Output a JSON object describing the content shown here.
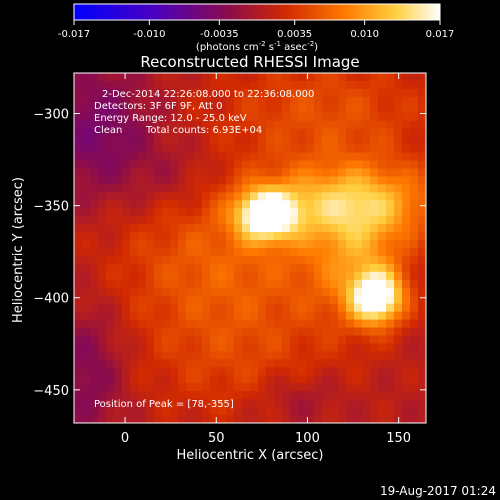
{
  "chart_data": {
    "type": "heatmap",
    "title": "Reconstructed RHESSI Image",
    "xlabel": "Heliocentric X (arcsec)",
    "ylabel": "Heliocentric Y (arcsec)",
    "xlim": [
      -28,
      165
    ],
    "ylim": [
      -468,
      -278
    ],
    "x_ticks": [
      "0",
      "50",
      "100",
      "150"
    ],
    "x_tick_values": [
      0,
      50,
      100,
      150
    ],
    "y_ticks": [
      "-300",
      "-350",
      "-400",
      "-450"
    ],
    "y_tick_values": [
      -300,
      -350,
      -400,
      -450
    ],
    "colorbar": {
      "range": [
        -0.017,
        0.017
      ],
      "ticks": [
        "-0.017",
        "-0.010",
        "-0.0035",
        "0.0035",
        "0.010",
        "0.017"
      ],
      "tick_values": [
        -0.017,
        -0.01,
        -0.0035,
        0.0035,
        0.01,
        0.017
      ],
      "units_prefix": "(photons cm",
      "units_sup1": "-2",
      "units_mid1": " s",
      "units_sup2": "-1",
      "units_mid2": " asec",
      "units_sup3": "-2",
      "units_suffix": ")"
    },
    "annotations": {
      "time_range": "2-Dec-2014 22:26:08.000 to 22:36:08.000",
      "detectors": "Detectors: 3F 6F 9F, Att 0",
      "energy": "Energy Range: 12.0 - 25.0 keV",
      "method": "Clean",
      "counts": "Total counts: 6.93E+04",
      "peak": "Position of Peak = [78,-355]"
    },
    "sources": [
      {
        "x": 78,
        "y": -355,
        "peak": 0.017
      },
      {
        "x": 138,
        "y": -400,
        "peak": 0.0165
      }
    ],
    "colormap_stops": [
      "#0000ff",
      "#5a00aa",
      "#8a0c4c",
      "#d22a00",
      "#ff7a00",
      "#ffd040",
      "#ffffff"
    ]
  },
  "footer": {
    "date": "19-Aug-2017 01:24"
  }
}
